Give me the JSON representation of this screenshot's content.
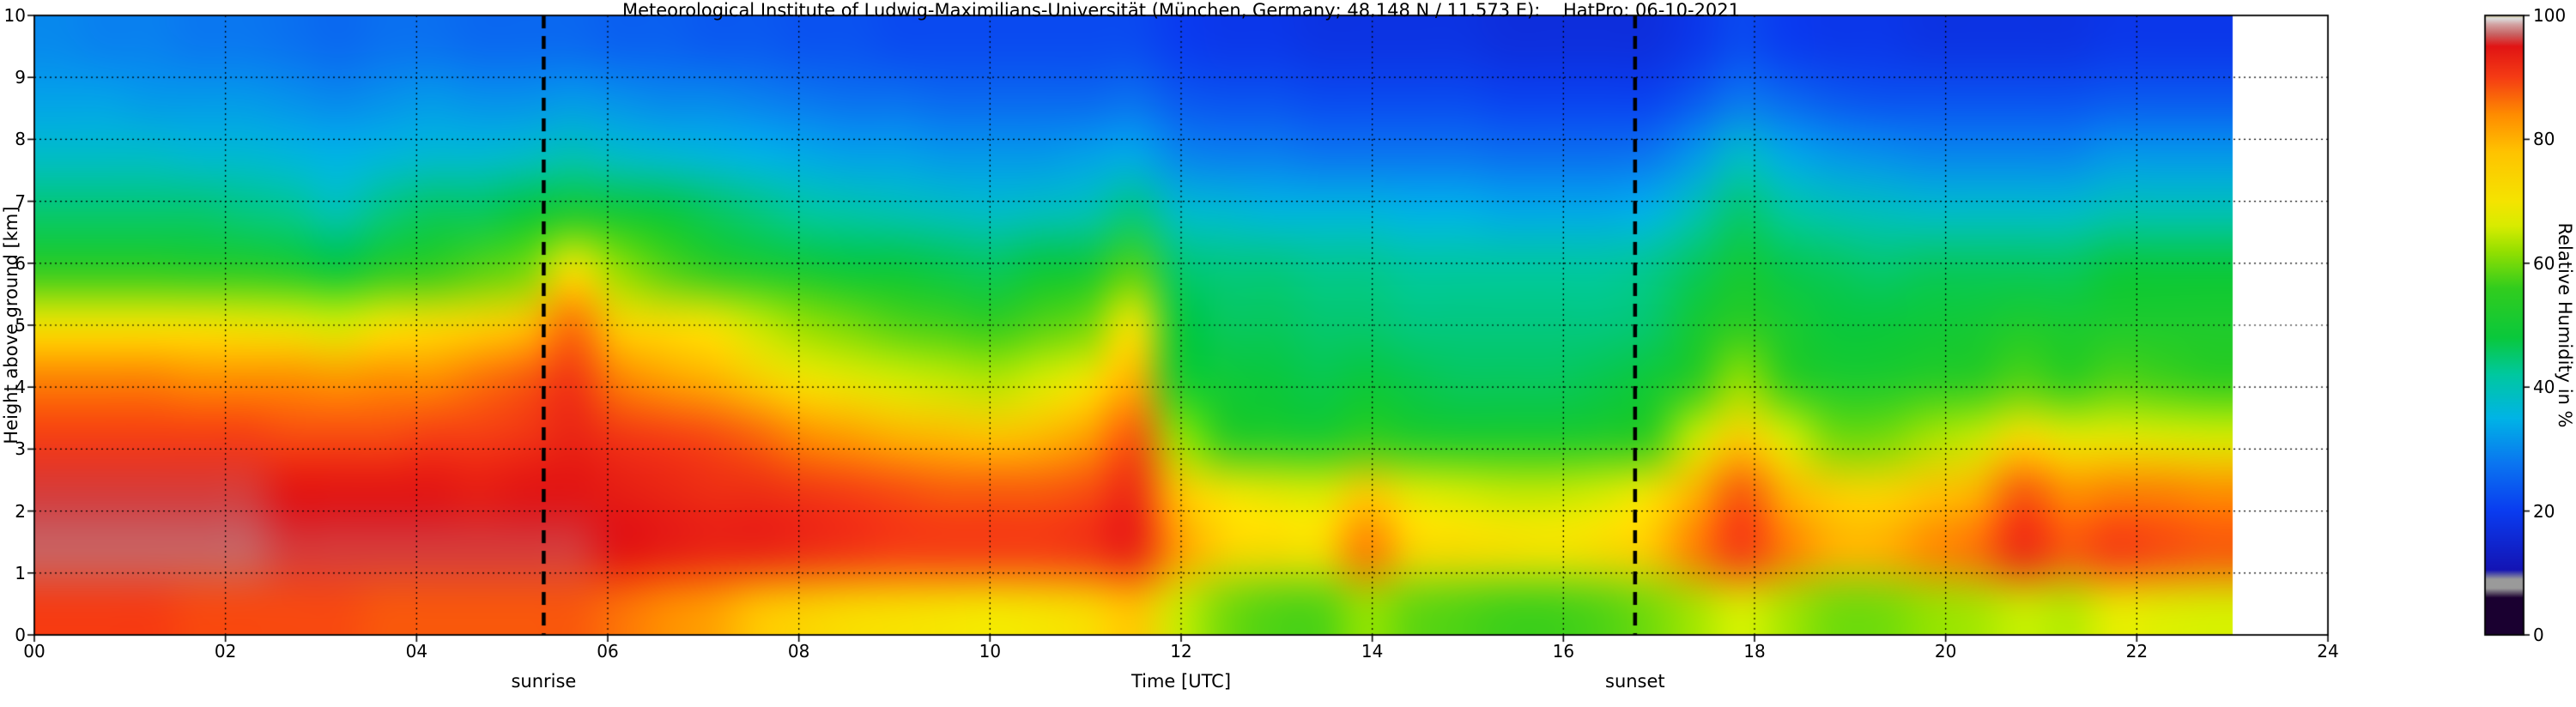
{
  "chart_data": {
    "type": "heatmap",
    "title": "Meteorological Institute of Ludwig-Maximilians-Universität (München, Germany; 48.148 N / 11.573 E):    HatPro: 06-10-2021",
    "xlabel": "Time [UTC]",
    "ylabel": "Height above ground [km]",
    "colorbar_label": "Relative Humidity in %",
    "xlim": [
      0,
      24
    ],
    "ylim": [
      0,
      10
    ],
    "value_range": [
      0,
      100
    ],
    "x_ticks": [
      "00",
      "02",
      "04",
      "06",
      "08",
      "10",
      "12",
      "14",
      "16",
      "18",
      "20",
      "22",
      "24"
    ],
    "x_tick_values": [
      0,
      2,
      4,
      6,
      8,
      10,
      12,
      14,
      16,
      18,
      20,
      22,
      24
    ],
    "y_ticks": [
      "0",
      "1",
      "2",
      "3",
      "4",
      "5",
      "6",
      "7",
      "8",
      "9",
      "10"
    ],
    "y_tick_values": [
      0,
      1,
      2,
      3,
      4,
      5,
      6,
      7,
      8,
      9,
      10
    ],
    "colorbar_ticks": [
      "0",
      "20",
      "40",
      "60",
      "80",
      "100"
    ],
    "colorbar_tick_values": [
      0,
      20,
      40,
      60,
      80,
      100
    ],
    "annotations": {
      "sunrise": {
        "label": "sunrise",
        "time": 5.33
      },
      "sunset": {
        "label": "sunset",
        "time": 16.75
      }
    },
    "grid": {
      "h_lines": [
        1,
        2,
        3,
        4,
        5,
        6,
        7,
        8,
        9
      ],
      "v_lines": [
        2,
        4,
        6,
        8,
        10,
        12,
        14,
        16,
        18,
        20,
        22
      ]
    },
    "colormap_stops": [
      {
        "v": 0.0,
        "c": "#1a0030"
      },
      {
        "v": 0.06,
        "c": "#1a0030"
      },
      {
        "v": 0.075,
        "c": "#9a9a9a"
      },
      {
        "v": 0.09,
        "c": "#9a9a9a"
      },
      {
        "v": 0.105,
        "c": "#1414b4"
      },
      {
        "v": 0.2,
        "c": "#0a3cf0"
      },
      {
        "v": 0.28,
        "c": "#0a78f0"
      },
      {
        "v": 0.35,
        "c": "#00b4e6"
      },
      {
        "v": 0.42,
        "c": "#00c8a0"
      },
      {
        "v": 0.48,
        "c": "#0ac83c"
      },
      {
        "v": 0.56,
        "c": "#32cd1e"
      },
      {
        "v": 0.62,
        "c": "#96e000"
      },
      {
        "v": 0.66,
        "c": "#d8ec00"
      },
      {
        "v": 0.7,
        "c": "#f5e400"
      },
      {
        "v": 0.78,
        "c": "#ffc300"
      },
      {
        "v": 0.84,
        "c": "#ff8c00"
      },
      {
        "v": 0.9,
        "c": "#f53c14"
      },
      {
        "v": 0.95,
        "c": "#e11414"
      },
      {
        "v": 0.97,
        "c": "#c86464"
      },
      {
        "v": 0.985,
        "c": "#d2a0a0"
      },
      {
        "v": 0.995,
        "c": "#dcdcdc"
      },
      {
        "v": 1.0,
        "c": "#cfc08c"
      }
    ],
    "x": [
      0,
      0.5,
      1,
      1.5,
      2,
      2.5,
      3,
      3.5,
      4,
      4.5,
      5,
      5.5,
      6,
      6.5,
      7,
      7.5,
      8,
      8.5,
      9,
      9.5,
      10,
      10.5,
      11,
      11.5,
      12,
      12.5,
      13,
      13.5,
      14,
      14.5,
      15,
      15.5,
      16,
      16.5,
      17,
      17.5,
      18,
      18.5,
      19,
      19.5,
      20,
      20.5,
      21,
      21.5,
      22,
      22.5,
      23
    ],
    "y": [
      0,
      1,
      2,
      3,
      4,
      5,
      6,
      7,
      8,
      9,
      10
    ],
    "values_note": "relative humidity in %, values[time_index][height_index], heights ascending",
    "values": [
      [
        90,
        97,
        96,
        90,
        85,
        70,
        55,
        45,
        38,
        33,
        30
      ],
      [
        90,
        97,
        96,
        90,
        85,
        70,
        55,
        45,
        38,
        33,
        29
      ],
      [
        90,
        97,
        96,
        90,
        85,
        70,
        55,
        45,
        38,
        32,
        29
      ],
      [
        89,
        97,
        96,
        90,
        84,
        70,
        54,
        45,
        37,
        32,
        28
      ],
      [
        89,
        97,
        96,
        90,
        84,
        69,
        54,
        44,
        37,
        32,
        28
      ],
      [
        89,
        96,
        95,
        89,
        84,
        68,
        52,
        43,
        36,
        31,
        27
      ],
      [
        89,
        96,
        95,
        89,
        83,
        66,
        48,
        40,
        35,
        30,
        26
      ],
      [
        88,
        96,
        95,
        89,
        84,
        70,
        54,
        44,
        36,
        31,
        27
      ],
      [
        88,
        96,
        95,
        90,
        84,
        72,
        56,
        46,
        37,
        32,
        27
      ],
      [
        88,
        96,
        94,
        90,
        86,
        74,
        58,
        46,
        37,
        31,
        26
      ],
      [
        88,
        96,
        95,
        91,
        88,
        78,
        60,
        48,
        38,
        31,
        26
      ],
      [
        88,
        96,
        95,
        93,
        91,
        86,
        70,
        52,
        40,
        32,
        26
      ],
      [
        86,
        95,
        94,
        91,
        85,
        75,
        62,
        50,
        38,
        31,
        25
      ],
      [
        84,
        94,
        93,
        90,
        82,
        72,
        58,
        48,
        37,
        30,
        25
      ],
      [
        82,
        93,
        92,
        89,
        80,
        70,
        55,
        46,
        36,
        30,
        24
      ],
      [
        78,
        93,
        92,
        87,
        75,
        65,
        52,
        44,
        35,
        29,
        24
      ],
      [
        75,
        92,
        91,
        84,
        70,
        62,
        50,
        42,
        34,
        28,
        23
      ],
      [
        73,
        91,
        90,
        82,
        68,
        60,
        48,
        41,
        33,
        27,
        23
      ],
      [
        72,
        90,
        89,
        80,
        66,
        58,
        48,
        40,
        33,
        27,
        22
      ],
      [
        71,
        90,
        88,
        79,
        65,
        57,
        47,
        39,
        32,
        26,
        22
      ],
      [
        70,
        90,
        88,
        78,
        64,
        56,
        46,
        38,
        32,
        26,
        22
      ],
      [
        71,
        90,
        88,
        79,
        66,
        58,
        48,
        39,
        32,
        26,
        22
      ],
      [
        73,
        91,
        89,
        82,
        70,
        60,
        50,
        40,
        33,
        26,
        22
      ],
      [
        78,
        93,
        92,
        88,
        80,
        70,
        58,
        44,
        34,
        27,
        22
      ],
      [
        65,
        82,
        78,
        62,
        52,
        48,
        45,
        38,
        30,
        24,
        20
      ],
      [
        60,
        74,
        70,
        55,
        49,
        46,
        44,
        37,
        29,
        23,
        19
      ],
      [
        58,
        72,
        68,
        53,
        48,
        46,
        44,
        36,
        29,
        23,
        19
      ],
      [
        58,
        72,
        67,
        52,
        47,
        45,
        43,
        36,
        28,
        22,
        18
      ],
      [
        62,
        85,
        76,
        56,
        48,
        45,
        43,
        36,
        28,
        22,
        18
      ],
      [
        59,
        74,
        68,
        53,
        47,
        44,
        42,
        35,
        28,
        22,
        18
      ],
      [
        58,
        72,
        66,
        52,
        46,
        44,
        42,
        35,
        28,
        22,
        18
      ],
      [
        57,
        71,
        65,
        52,
        46,
        44,
        42,
        34,
        27,
        21,
        17
      ],
      [
        57,
        70,
        65,
        52,
        46,
        44,
        42,
        34,
        27,
        21,
        17
      ],
      [
        58,
        72,
        66,
        53,
        47,
        44,
        42,
        34,
        27,
        21,
        17
      ],
      [
        60,
        76,
        70,
        56,
        49,
        45,
        43,
        35,
        28,
        21,
        17
      ],
      [
        63,
        85,
        80,
        65,
        55,
        50,
        46,
        40,
        32,
        24,
        19
      ],
      [
        66,
        90,
        88,
        75,
        62,
        55,
        50,
        45,
        38,
        28,
        22
      ],
      [
        63,
        85,
        80,
        66,
        56,
        51,
        47,
        42,
        34,
        26,
        20
      ],
      [
        60,
        80,
        75,
        60,
        52,
        48,
        46,
        40,
        32,
        24,
        19
      ],
      [
        60,
        80,
        74,
        60,
        52,
        48,
        45,
        39,
        31,
        23,
        19
      ],
      [
        62,
        84,
        78,
        63,
        54,
        49,
        46,
        38,
        30,
        23,
        18
      ],
      [
        63,
        86,
        80,
        65,
        55,
        50,
        46,
        38,
        30,
        23,
        18
      ],
      [
        65,
        92,
        88,
        72,
        58,
        52,
        46,
        38,
        30,
        23,
        18
      ],
      [
        64,
        88,
        84,
        68,
        56,
        51,
        46,
        38,
        30,
        23,
        18
      ],
      [
        68,
        90,
        85,
        68,
        58,
        52,
        48,
        40,
        32,
        24,
        19
      ],
      [
        67,
        89,
        85,
        67,
        57,
        52,
        48,
        40,
        32,
        24,
        19
      ],
      [
        66,
        88,
        84,
        66,
        56,
        52,
        48,
        40,
        32,
        24,
        19
      ]
    ]
  }
}
